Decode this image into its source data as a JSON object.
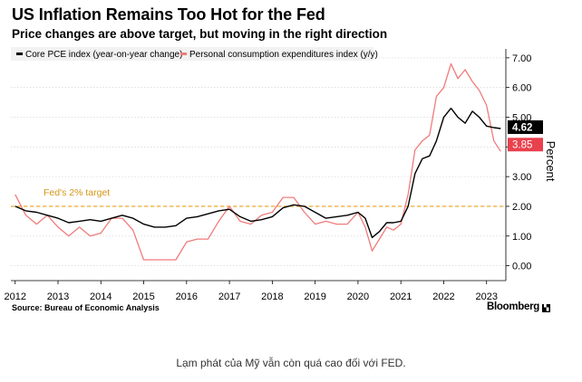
{
  "header": {
    "title": "US Inflation Remains Too Hot for the Fed",
    "subtitle": "Price changes are above target, but moving in the right direction"
  },
  "footer": {
    "source": "Source: Bureau of Economic Analysis",
    "brand": "Bloomberg",
    "caption": "Lạm phát của Mỹ vẫn còn quá cao đối với FED."
  },
  "colors": {
    "core": "#000000",
    "pce": "#f07b7b",
    "pce_tag": "#e8414d",
    "target": "#f0b23c",
    "grid": "#d9d9d9"
  },
  "chart_data": {
    "type": "line",
    "title": "US Inflation Remains Too Hot for the Fed",
    "ylabel": "Percent",
    "xlabel": "",
    "ylim": [
      -0.5,
      7.3
    ],
    "xlim": [
      2011.9,
      2023.45
    ],
    "yticks": [
      0,
      1,
      2,
      3,
      4,
      5,
      6,
      7
    ],
    "ytick_labels": [
      "0.00",
      "1.00",
      "2.00",
      "3.00",
      "4.00",
      "5.00",
      "6.00",
      "7.00"
    ],
    "xticks": [
      2012,
      2013,
      2014,
      2015,
      2016,
      2017,
      2018,
      2019,
      2020,
      2021,
      2022,
      2023
    ],
    "xtick_labels": [
      "2012",
      "2013",
      "2014",
      "2015",
      "2016",
      "2017",
      "2018",
      "2019",
      "2020",
      "2021",
      "2022",
      "2023"
    ],
    "legend_position": "top-left",
    "grid": true,
    "target": {
      "value": 2,
      "label": "Fed's 2% target"
    },
    "series": [
      {
        "name": "Core PCE index (year-on-year change)",
        "color": "#000000",
        "last_label": "4.62",
        "points": [
          [
            2012.0,
            2.0
          ],
          [
            2012.25,
            1.85
          ],
          [
            2012.5,
            1.8
          ],
          [
            2012.75,
            1.7
          ],
          [
            2013.0,
            1.6
          ],
          [
            2013.25,
            1.45
          ],
          [
            2013.5,
            1.5
          ],
          [
            2013.75,
            1.55
          ],
          [
            2014.0,
            1.5
          ],
          [
            2014.25,
            1.6
          ],
          [
            2014.5,
            1.7
          ],
          [
            2014.75,
            1.6
          ],
          [
            2015.0,
            1.4
          ],
          [
            2015.25,
            1.3
          ],
          [
            2015.5,
            1.3
          ],
          [
            2015.75,
            1.35
          ],
          [
            2016.0,
            1.6
          ],
          [
            2016.25,
            1.65
          ],
          [
            2016.5,
            1.75
          ],
          [
            2016.75,
            1.85
          ],
          [
            2017.0,
            1.9
          ],
          [
            2017.25,
            1.65
          ],
          [
            2017.5,
            1.5
          ],
          [
            2017.75,
            1.55
          ],
          [
            2018.0,
            1.65
          ],
          [
            2018.25,
            1.95
          ],
          [
            2018.5,
            2.05
          ],
          [
            2018.75,
            2.0
          ],
          [
            2019.0,
            1.8
          ],
          [
            2019.25,
            1.6
          ],
          [
            2019.5,
            1.65
          ],
          [
            2019.75,
            1.7
          ],
          [
            2020.0,
            1.8
          ],
          [
            2020.17,
            1.6
          ],
          [
            2020.33,
            0.95
          ],
          [
            2020.5,
            1.15
          ],
          [
            2020.67,
            1.45
          ],
          [
            2020.83,
            1.45
          ],
          [
            2021.0,
            1.5
          ],
          [
            2021.17,
            2.0
          ],
          [
            2021.33,
            3.1
          ],
          [
            2021.5,
            3.6
          ],
          [
            2021.67,
            3.7
          ],
          [
            2021.83,
            4.2
          ],
          [
            2022.0,
            5.0
          ],
          [
            2022.17,
            5.3
          ],
          [
            2022.33,
            5.0
          ],
          [
            2022.5,
            4.8
          ],
          [
            2022.67,
            5.2
          ],
          [
            2022.83,
            5.0
          ],
          [
            2023.0,
            4.7
          ],
          [
            2023.17,
            4.65
          ],
          [
            2023.33,
            4.62
          ]
        ]
      },
      {
        "name": "Personal consumption expenditures index (y/y)",
        "color": "#f07b7b",
        "last_label": "3.85",
        "points": [
          [
            2012.0,
            2.4
          ],
          [
            2012.25,
            1.7
          ],
          [
            2012.5,
            1.4
          ],
          [
            2012.75,
            1.7
          ],
          [
            2013.0,
            1.3
          ],
          [
            2013.25,
            1.0
          ],
          [
            2013.5,
            1.3
          ],
          [
            2013.75,
            1.0
          ],
          [
            2014.0,
            1.1
          ],
          [
            2014.25,
            1.6
          ],
          [
            2014.5,
            1.6
          ],
          [
            2014.75,
            1.2
          ],
          [
            2015.0,
            0.2
          ],
          [
            2015.25,
            0.2
          ],
          [
            2015.5,
            0.2
          ],
          [
            2015.75,
            0.2
          ],
          [
            2016.0,
            0.8
          ],
          [
            2016.25,
            0.9
          ],
          [
            2016.5,
            0.9
          ],
          [
            2016.75,
            1.5
          ],
          [
            2017.0,
            2.0
          ],
          [
            2017.25,
            1.5
          ],
          [
            2017.5,
            1.4
          ],
          [
            2017.75,
            1.7
          ],
          [
            2018.0,
            1.8
          ],
          [
            2018.25,
            2.3
          ],
          [
            2018.5,
            2.3
          ],
          [
            2018.75,
            1.8
          ],
          [
            2019.0,
            1.4
          ],
          [
            2019.25,
            1.5
          ],
          [
            2019.5,
            1.4
          ],
          [
            2019.75,
            1.4
          ],
          [
            2020.0,
            1.8
          ],
          [
            2020.17,
            1.3
          ],
          [
            2020.33,
            0.5
          ],
          [
            2020.5,
            0.9
          ],
          [
            2020.67,
            1.3
          ],
          [
            2020.83,
            1.2
          ],
          [
            2021.0,
            1.4
          ],
          [
            2021.17,
            2.4
          ],
          [
            2021.33,
            3.9
          ],
          [
            2021.5,
            4.2
          ],
          [
            2021.67,
            4.4
          ],
          [
            2021.83,
            5.7
          ],
          [
            2022.0,
            6.0
          ],
          [
            2022.17,
            6.8
          ],
          [
            2022.33,
            6.3
          ],
          [
            2022.5,
            6.6
          ],
          [
            2022.67,
            6.2
          ],
          [
            2022.83,
            5.9
          ],
          [
            2023.0,
            5.4
          ],
          [
            2023.17,
            4.2
          ],
          [
            2023.33,
            3.85
          ]
        ]
      }
    ]
  }
}
